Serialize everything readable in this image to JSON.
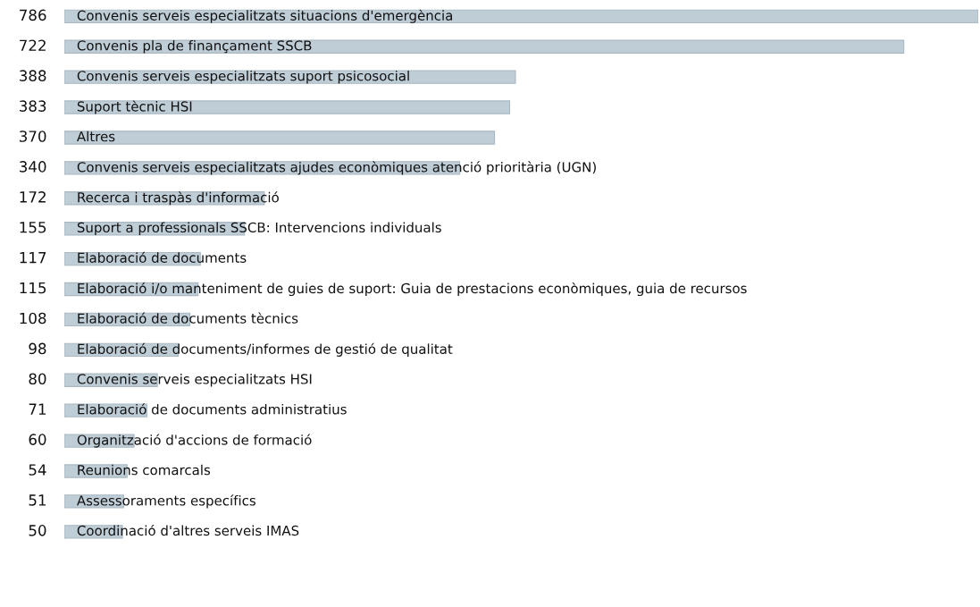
{
  "chart_data": {
    "type": "bar",
    "orientation": "horizontal",
    "data_labels": true,
    "tick_labels": false,
    "color": "#bfcdd6",
    "categories": [
      "Convenis serveis especialitzats situacions d'emergència",
      "Convenis pla de finançament SSCB",
      "Convenis serveis especialitzats suport psicosocial",
      "Suport tècnic HSI",
      "Altres",
      "Convenis serveis especialitzats ajudes econòmiques atenció prioritària (UGN)",
      "Recerca i traspàs d'informació",
      "Suport a professionals SSCB: Intervencions individuals",
      "Elaboració de documents",
      "Elaboració i/o manteniment de guies de suport: Guia de prestacions econòmiques, guia de recursos",
      "Elaboració de documents tècnics",
      "Elaboració de documents/informes de gestió de qualitat",
      "Convenis serveis especialitzats HSI",
      "Elaboració de documents administratius",
      "Organització d'accions de formació",
      "Reunions comarcals",
      "Assessoraments específics",
      "Coordinació d'altres serveis IMAS"
    ],
    "values": [
      786,
      722,
      388,
      383,
      370,
      340,
      172,
      155,
      117,
      115,
      108,
      98,
      80,
      71,
      60,
      54,
      51,
      50
    ]
  }
}
